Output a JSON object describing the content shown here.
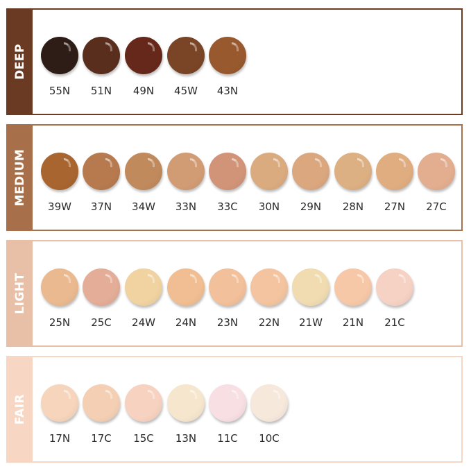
{
  "groups": [
    {
      "label": "DEEP",
      "band_color": "#6b3a22",
      "shades": [
        {
          "name": "55N",
          "color": "#2e1d17"
        },
        {
          "name": "51N",
          "color": "#5a2e1c"
        },
        {
          "name": "49N",
          "color": "#66281a"
        },
        {
          "name": "45W",
          "color": "#7a4526"
        },
        {
          "name": "43N",
          "color": "#98592e"
        }
      ]
    },
    {
      "label": "MEDIUM",
      "band_color": "#a8704a",
      "shades": [
        {
          "name": "39W",
          "color": "#a8652f"
        },
        {
          "name": "37N",
          "color": "#b77a4f"
        },
        {
          "name": "34W",
          "color": "#c08a5c"
        },
        {
          "name": "33N",
          "color": "#d19c74"
        },
        {
          "name": "33C",
          "color": "#d29479"
        },
        {
          "name": "30N",
          "color": "#dbab80"
        },
        {
          "name": "29N",
          "color": "#dba77f"
        },
        {
          "name": "28N",
          "color": "#ddb083"
        },
        {
          "name": "27N",
          "color": "#e0ad80"
        },
        {
          "name": "27C",
          "color": "#e3ae8f"
        }
      ]
    },
    {
      "label": "LIGHT",
      "band_color": "#e8c0a8",
      "shades": [
        {
          "name": "25N",
          "color": "#eab98f"
        },
        {
          "name": "25C",
          "color": "#e3ad98"
        },
        {
          "name": "24W",
          "color": "#f0d3a0"
        },
        {
          "name": "24N",
          "color": "#f0be92"
        },
        {
          "name": "23N",
          "color": "#f2c09b"
        },
        {
          "name": "22N",
          "color": "#f3c49f"
        },
        {
          "name": "21W",
          "color": "#f0dcb0"
        },
        {
          "name": "21N",
          "color": "#f6c8a8"
        },
        {
          "name": "21C",
          "color": "#f6d2c4"
        }
      ]
    },
    {
      "label": "FAIR",
      "band_color": "#f7d7c3",
      "shades": [
        {
          "name": "17N",
          "color": "#f6d5bc"
        },
        {
          "name": "17C",
          "color": "#f4cfb4"
        },
        {
          "name": "15C",
          "color": "#f7d2c0"
        },
        {
          "name": "13N",
          "color": "#f6e6ce"
        },
        {
          "name": "11C",
          "color": "#f7dfe3"
        },
        {
          "name": "10C",
          "color": "#f7e8dc"
        }
      ]
    }
  ]
}
